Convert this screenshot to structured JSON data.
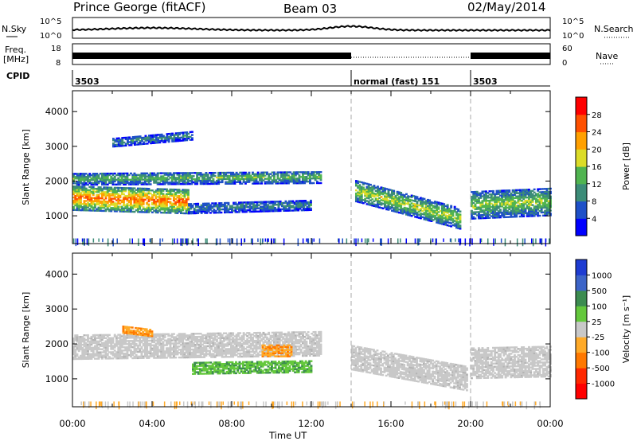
{
  "header": {
    "station": "Prince George (fitACF)",
    "beam": "Beam 03",
    "date": "02/May/2014"
  },
  "noise_panel": {
    "left_label": "N.Sky",
    "right_label": "N.Search",
    "left_ticks": [
      "10^5",
      "10^0"
    ],
    "right_ticks": [
      "10^5",
      "10^0"
    ]
  },
  "freq_panel": {
    "left_label_1": "Freq.",
    "left_label_2": "[MHz]",
    "right_label": "Nave",
    "left_ticks": [
      "18",
      "8"
    ],
    "right_ticks": [
      "60",
      "0"
    ]
  },
  "cpid_panel": {
    "label": "CPID",
    "segments": [
      {
        "start_hour": 0,
        "text": "3503"
      },
      {
        "start_hour": 14,
        "text": "normal (fast) 151"
      },
      {
        "start_hour": 20,
        "text": "3503"
      }
    ]
  },
  "chart_data": [
    {
      "type": "heatmap",
      "name": "power",
      "ylabel": "Slant Range [km]",
      "xlabel": "",
      "xlim": [
        0,
        24
      ],
      "ylim": [
        200,
        4600
      ],
      "yticks": [
        1000,
        2000,
        3000,
        4000
      ],
      "colorbar": {
        "label": "Power [dB]",
        "ticks": [
          4,
          8,
          12,
          16,
          20,
          24,
          28
        ],
        "range": [
          0,
          32
        ],
        "colors": [
          "#0000ff",
          "#1e50c8",
          "#3c8c78",
          "#50b450",
          "#dcdc28",
          "#ffa000",
          "#ff5000",
          "#ff0000"
        ]
      },
      "echo_bands": [
        {
          "t0": 0.0,
          "t1": 5.8,
          "r_center_start": 1500,
          "r_center_end": 1400,
          "width": 700,
          "level_dB": 26
        },
        {
          "t0": 5.8,
          "t1": 12.0,
          "r_center_start": 1200,
          "r_center_end": 1300,
          "width": 300,
          "level_dB": 10
        },
        {
          "t0": 0.0,
          "t1": 12.5,
          "r_center_start": 2050,
          "r_center_end": 2100,
          "width": 350,
          "level_dB": 14
        },
        {
          "t0": 2.0,
          "t1": 6.0,
          "r_center_start": 3100,
          "r_center_end": 3300,
          "width": 250,
          "level_dB": 10
        },
        {
          "t0": 14.2,
          "t1": 19.5,
          "r_center_start": 1700,
          "r_center_end": 900,
          "width": 600,
          "level_dB": 18
        },
        {
          "t0": 20.0,
          "t1": 24.0,
          "r_center_start": 1300,
          "r_center_end": 1400,
          "width": 800,
          "level_dB": 16
        }
      ]
    },
    {
      "type": "heatmap",
      "name": "velocity",
      "ylabel": "Slant Range [km]",
      "xlabel": "Time UT",
      "xlim": [
        0,
        24
      ],
      "ylim": [
        200,
        4600
      ],
      "yticks": [
        1000,
        2000,
        3000,
        4000
      ],
      "xticks": [
        "00:00",
        "04:00",
        "08:00",
        "12:00",
        "16:00",
        "20:00",
        "00:00"
      ],
      "colorbar": {
        "label": "Velocity [m s⁻¹]",
        "ticks": [
          "1000",
          "500",
          "100",
          "25",
          "-25",
          "-100",
          "-500",
          "-1000"
        ],
        "colors": [
          "#1e3cd2",
          "#3c64c8",
          "#3c8c50",
          "#64c83c",
          "#c8c8c8",
          "#ffaa28",
          "#ff7800",
          "#ff2800",
          "#ff0000"
        ]
      },
      "echo_bands": [
        {
          "t0": 0.0,
          "t1": 12.5,
          "r_center_start": 1900,
          "r_center_end": 2000,
          "width": 700,
          "v_class": "ground"
        },
        {
          "t0": 6.0,
          "t1": 12.0,
          "r_center_start": 1300,
          "r_center_end": 1350,
          "width": 350,
          "v_class": "positive"
        },
        {
          "t0": 2.5,
          "t1": 4.0,
          "r_center_start": 2400,
          "r_center_end": 2300,
          "width": 200,
          "v_class": "negative"
        },
        {
          "t0": 9.5,
          "t1": 11.0,
          "r_center_start": 1800,
          "r_center_end": 1800,
          "width": 350,
          "v_class": "negative"
        },
        {
          "t0": 14.0,
          "t1": 19.8,
          "r_center_start": 1600,
          "r_center_end": 1000,
          "width": 700,
          "v_class": "ground"
        },
        {
          "t0": 20.0,
          "t1": 24.0,
          "r_center_start": 1450,
          "r_center_end": 1500,
          "width": 900,
          "v_class": "ground"
        }
      ]
    }
  ],
  "colors": {
    "grid_dash": "#aaaaaa"
  }
}
